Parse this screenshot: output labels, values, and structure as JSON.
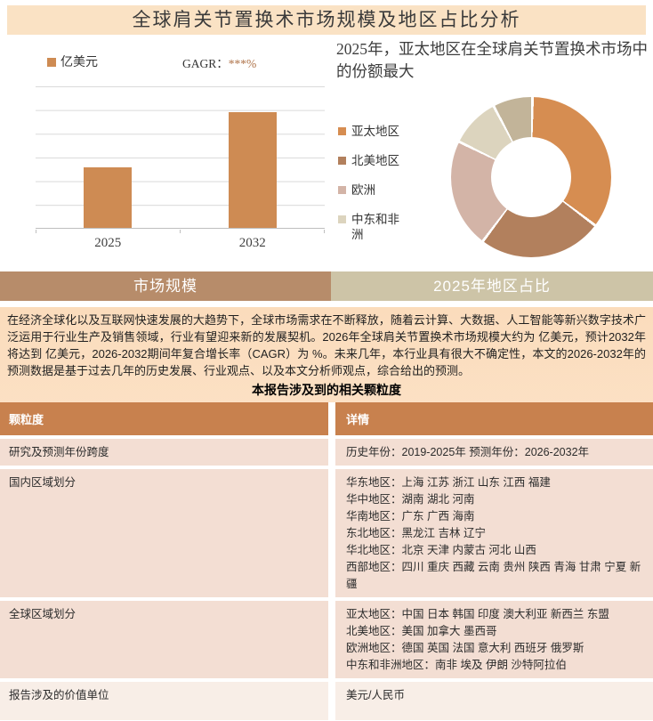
{
  "title": "全球肩关节置换术市场规模及地区占比分析",
  "colors": {
    "title_bar_bg": "#FAE2C4",
    "section_bg_top": "#FBDCBC",
    "section_bg_bottom": "#FDEEDD",
    "tab_left_bg": "#B78C6A",
    "tab_right_bg": "#CDC4A7",
    "table_header_bg": "#C8814E",
    "row_bg": "#F3DED3",
    "row_bg_light": "#F8EEE7",
    "grid_line": "#D9D9D9",
    "axis_line": "#BFBFBF",
    "cagr_value_color": "#AE7248"
  },
  "chart_data": [
    {
      "type": "bar",
      "categories": [
        "2025",
        "2032"
      ],
      "values": [
        42.5,
        82
      ],
      "ylim": [
        0,
        100
      ],
      "value_note": "y-axis has no tick labels; values are relative bar heights in % of plot area",
      "grid": true,
      "bar_color": "#CE8B53",
      "legend_label": "亿美元",
      "cagr_prefix": "GAGR：",
      "cagr_value": "***%"
    },
    {
      "type": "pie",
      "subtype": "donut",
      "title": "2025年，亚太地区在全球肩关节置换术市场中的份额最大",
      "values_estimated": true,
      "legend_position": "left",
      "segments": [
        {
          "label": "亚太地区",
          "value": 35,
          "color": "#D68D51",
          "in_legend": true
        },
        {
          "label": "北美地区",
          "value": 25,
          "color": "#B2805D",
          "in_legend": true
        },
        {
          "label": "欧洲",
          "value": 22,
          "color": "#D3B4A7",
          "in_legend": true
        },
        {
          "label": "中东和非洲",
          "value": 10,
          "color": "#DCD4BE",
          "in_legend": true
        },
        {
          "label": "",
          "value": 8,
          "color": "#C2B499",
          "in_legend": false
        }
      ]
    }
  ],
  "tabs": [
    {
      "label": "市场规模"
    },
    {
      "label": "2025年地区占比"
    }
  ],
  "intro_paragraph": "在经济全球化以及互联网快速发展的大趋势下，全球市场需求在不断释放，随着云计算、大数据、人工智能等新兴数字技术广泛运用于行业生产及销售领域，行业有望迎来新的发展契机。2026年全球肩关节置换术市场规模大约为 亿美元，预计2032年将达到 亿美元，2026-2032期间年复合增长率（CAGR）为 %。未来几年，本行业具有很大不确定性，本文的2026-2032年的预测数据是基于过去几年的历史发展、行业观点、以及本文分析师观点，综合给出的预测。",
  "table": {
    "caption": "本报告涉及到的相关颗粒度",
    "headers": [
      "颗粒度",
      "详情"
    ],
    "rows": [
      {
        "label": "研究及预测年份跨度",
        "detail": "历史年份：2019-2025年  预测年份：2026-2032年"
      },
      {
        "label": "国内区域划分",
        "detail": "华东地区：上海  江苏  浙江  山东  江西  福建\n华中地区：湖南  湖北  河南\n华南地区：广东  广西  海南\n东北地区：黑龙江  吉林  辽宁\n华北地区：北京  天津  内蒙古  河北  山西\n西部地区：四川  重庆  西藏  云南  贵州  陕西  青海  甘肃  宁夏  新疆"
      },
      {
        "label": "全球区域划分",
        "detail": "亚太地区：中国  日本  韩国  印度  澳大利亚  新西兰  东盟\n北美地区：美国  加拿大  墨西哥\n欧洲地区：德国  英国  法国  意大利  西班牙  俄罗斯\n中东和非洲地区：南非  埃及  伊朗  沙特阿拉伯"
      },
      {
        "label": "报告涉及的价值单位",
        "detail": "美元/人民币"
      }
    ]
  }
}
